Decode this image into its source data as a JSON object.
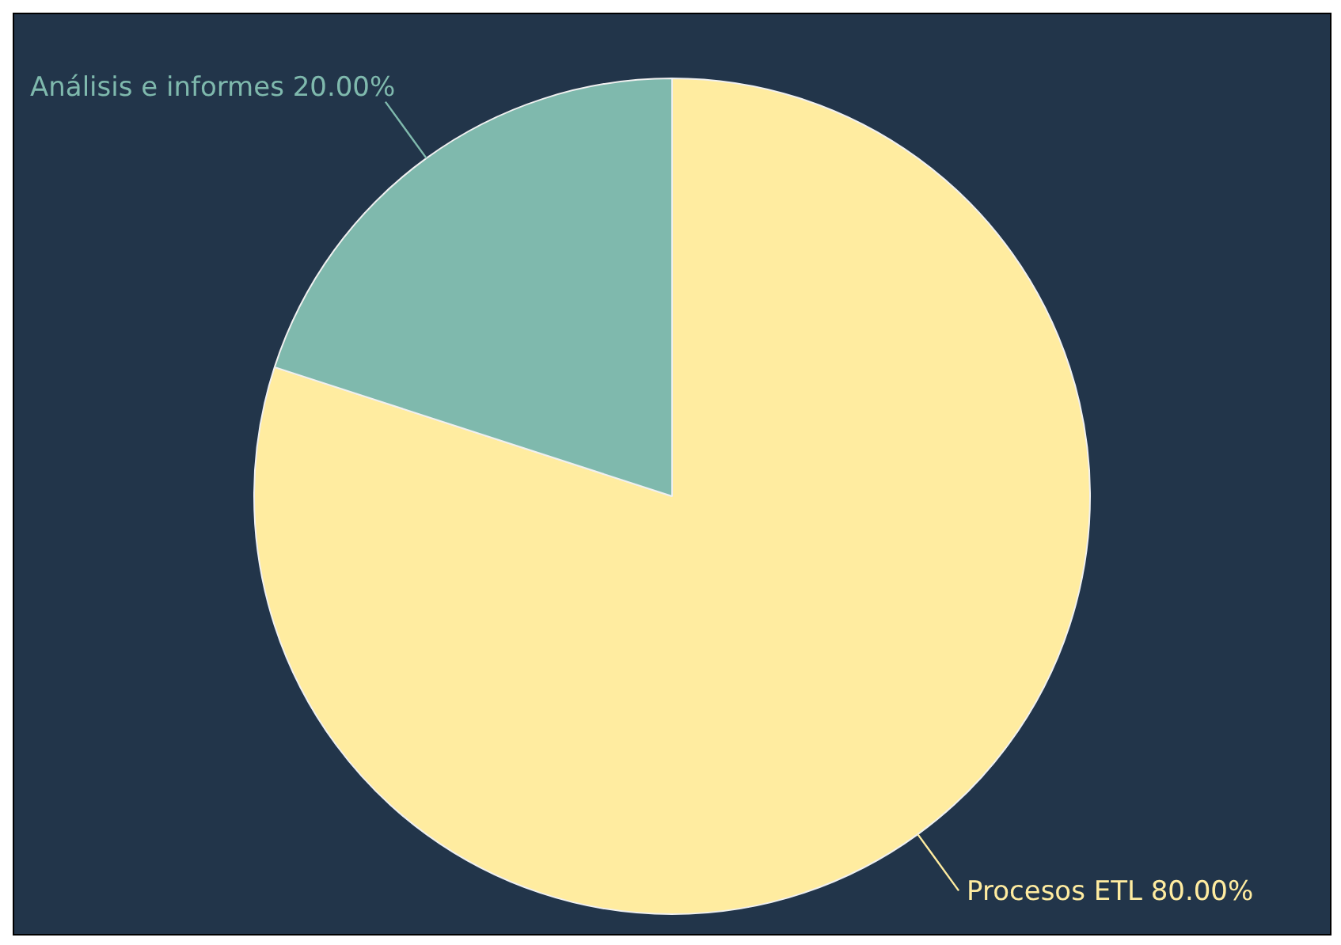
{
  "chart_data": {
    "type": "pie",
    "categories": [
      "Procesos ETL",
      "Análisis e informes"
    ],
    "values": [
      80,
      20
    ],
    "colors": [
      "#ffeca0",
      "#7fb9ad"
    ],
    "value_labels": [
      "80.00%",
      "20.00%"
    ],
    "legend": false
  }
}
